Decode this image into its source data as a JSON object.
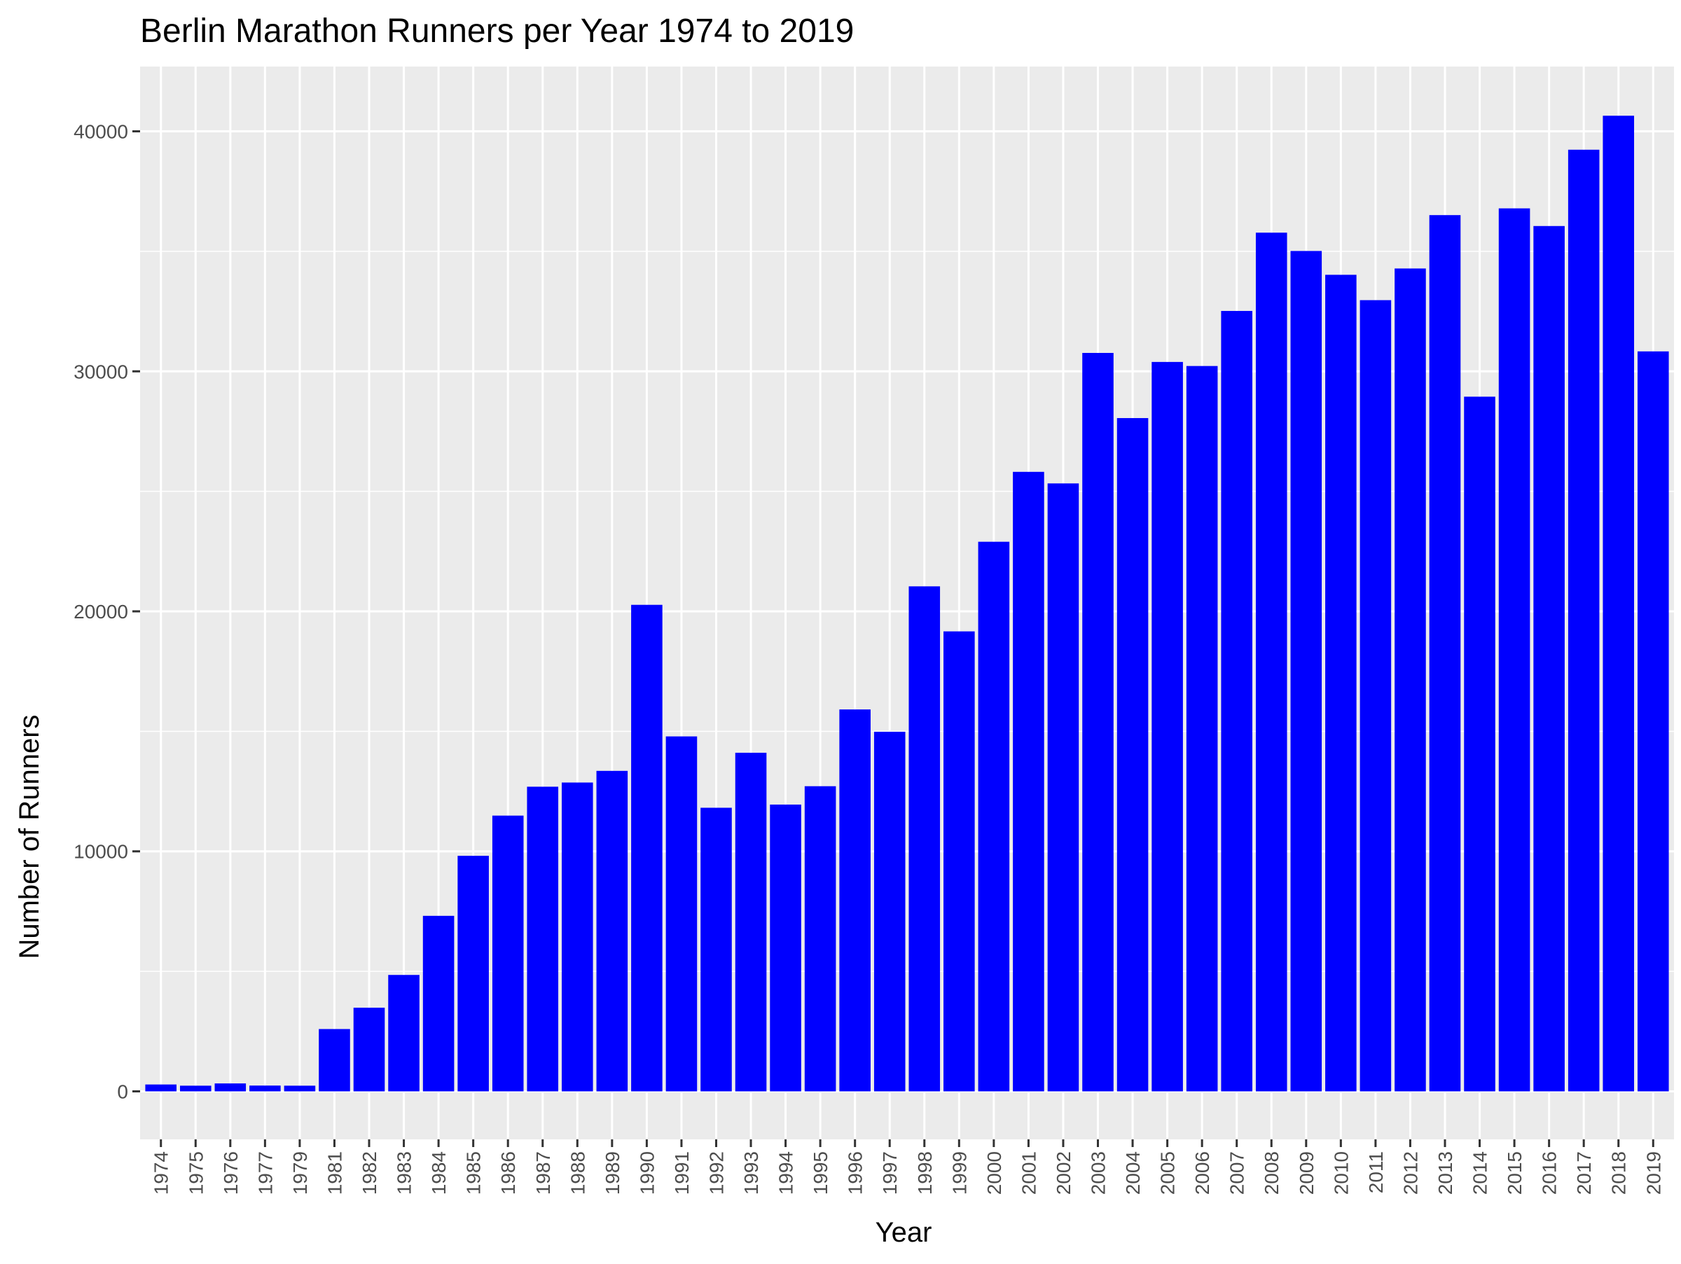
{
  "chart_data": {
    "type": "bar",
    "title": "Berlin Marathon Runners per Year 1974 to 2019",
    "xlabel": "Year",
    "ylabel": "Number of Runners",
    "categories": [
      "1974",
      "1975",
      "1976",
      "1977",
      "1979",
      "1981",
      "1982",
      "1983",
      "1984",
      "1985",
      "1986",
      "1987",
      "1988",
      "1989",
      "1990",
      "1991",
      "1992",
      "1993",
      "1994",
      "1995",
      "1996",
      "1997",
      "1998",
      "1999",
      "2000",
      "2001",
      "2002",
      "2003",
      "2004",
      "2005",
      "2006",
      "2007",
      "2008",
      "2009",
      "2010",
      "2011",
      "2012",
      "2013",
      "2014",
      "2015",
      "2016",
      "2017",
      "2018",
      "2019"
    ],
    "values": [
      286,
      236,
      330,
      241,
      236,
      2596,
      3486,
      4850,
      7313,
      9814,
      11489,
      12693,
      12867,
      13353,
      20271,
      14789,
      11816,
      14108,
      11949,
      12714,
      15912,
      14983,
      21041,
      19165,
      22899,
      25812,
      25330,
      30767,
      28052,
      30391,
      30222,
      32516,
      35778,
      35015,
      34022,
      32966,
      34285,
      36509,
      28944,
      36790,
      36054,
      39234,
      40650,
      30831
    ],
    "yticks": [
      0,
      10000,
      20000,
      30000,
      40000
    ],
    "ylim": [
      -2000,
      42700
    ],
    "grid": true,
    "legend": "none",
    "colors": {
      "bar": "#0000ff",
      "panel": "#ebebeb",
      "grid": "#ffffff",
      "tick": "#333333",
      "tick_label": "#4d4d4d"
    }
  }
}
